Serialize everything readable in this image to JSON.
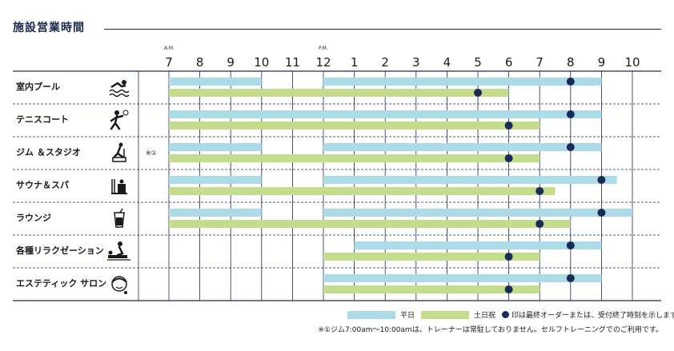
{
  "title": "施設営業時間",
  "legend": {
    "weekday_label": "平日",
    "weekend_label": "土日祝",
    "dot_note": "印は最終オーダーまたは、受付終了時刻を示します。"
  },
  "footnote": "※①ジム7:00am〜10:00amは、トレーナーは常駐しておりません。セルフトレーニングでのご利用です。",
  "colors": {
    "weekday": "#aadbe6",
    "weekend": "#c3dd8c",
    "dot": "#1a2a5a",
    "line": "#1a2a5a"
  },
  "chart_data": {
    "type": "bar",
    "orientation": "horizontal",
    "x_axis": {
      "range": [
        7,
        22
      ],
      "ticks": [
        {
          "hour": 7,
          "label": "7",
          "sub": "A.M."
        },
        {
          "hour": 8,
          "label": "8",
          "sub": ""
        },
        {
          "hour": 9,
          "label": "9",
          "sub": ""
        },
        {
          "hour": 10,
          "label": "10",
          "sub": ""
        },
        {
          "hour": 11,
          "label": "11",
          "sub": ""
        },
        {
          "hour": 12,
          "label": "12",
          "sub": "P.M."
        },
        {
          "hour": 13,
          "label": "1",
          "sub": ""
        },
        {
          "hour": 14,
          "label": "2",
          "sub": ""
        },
        {
          "hour": 15,
          "label": "3",
          "sub": ""
        },
        {
          "hour": 16,
          "label": "4",
          "sub": ""
        },
        {
          "hour": 17,
          "label": "5",
          "sub": ""
        },
        {
          "hour": 18,
          "label": "6",
          "sub": ""
        },
        {
          "hour": 19,
          "label": "7",
          "sub": ""
        },
        {
          "hour": 20,
          "label": "8",
          "sub": ""
        },
        {
          "hour": 21,
          "label": "9",
          "sub": ""
        },
        {
          "hour": 22,
          "label": "10",
          "sub": ""
        }
      ]
    },
    "facilities": [
      {
        "name": "室内プール",
        "icon": "swimming-icon",
        "note": "",
        "weekday": {
          "segments": [
            [
              7,
              10
            ],
            [
              12,
              21
            ]
          ],
          "last_order": 20
        },
        "weekend": {
          "segments": [
            [
              7,
              18
            ]
          ],
          "last_order": 17
        }
      },
      {
        "name": "テニスコート",
        "icon": "tennis-icon",
        "note": "",
        "weekday": {
          "segments": [
            [
              7,
              21
            ]
          ],
          "last_order": 20
        },
        "weekend": {
          "segments": [
            [
              7,
              19
            ]
          ],
          "last_order": 18
        }
      },
      {
        "name": "ジム ＆スタジオ",
        "icon": "gym-icon",
        "note": "※①",
        "weekday": {
          "segments": [
            [
              7,
              10
            ],
            [
              12,
              21
            ]
          ],
          "last_order": 20
        },
        "weekend": {
          "segments": [
            [
              7,
              19
            ]
          ],
          "last_order": 18
        }
      },
      {
        "name": "サウナ＆スパ",
        "icon": "sauna-icon",
        "note": "",
        "weekday": {
          "segments": [
            [
              7,
              10
            ],
            [
              12,
              21.5
            ]
          ],
          "last_order": 21
        },
        "weekend": {
          "segments": [
            [
              7,
              19.5
            ]
          ],
          "last_order": 19
        }
      },
      {
        "name": "ラウンジ",
        "icon": "drink-icon",
        "note": "",
        "weekday": {
          "segments": [
            [
              7,
              10
            ],
            [
              12,
              22
            ]
          ],
          "last_order": 21
        },
        "weekend": {
          "segments": [
            [
              7,
              20
            ]
          ],
          "last_order": 19
        }
      },
      {
        "name": "各種リラクゼーション",
        "icon": "massage-icon",
        "note": "",
        "weekday": {
          "segments": [
            [
              13,
              21
            ]
          ],
          "last_order": 20
        },
        "weekend": {
          "segments": [
            [
              12,
              19
            ]
          ],
          "last_order": 18
        }
      },
      {
        "name": "エステティック サロン",
        "icon": "esthetic-icon",
        "note": "",
        "weekday": {
          "segments": [
            [
              12,
              21
            ]
          ],
          "last_order": 20
        },
        "weekend": {
          "segments": [
            [
              12,
              19
            ]
          ],
          "last_order": 18
        }
      }
    ]
  }
}
